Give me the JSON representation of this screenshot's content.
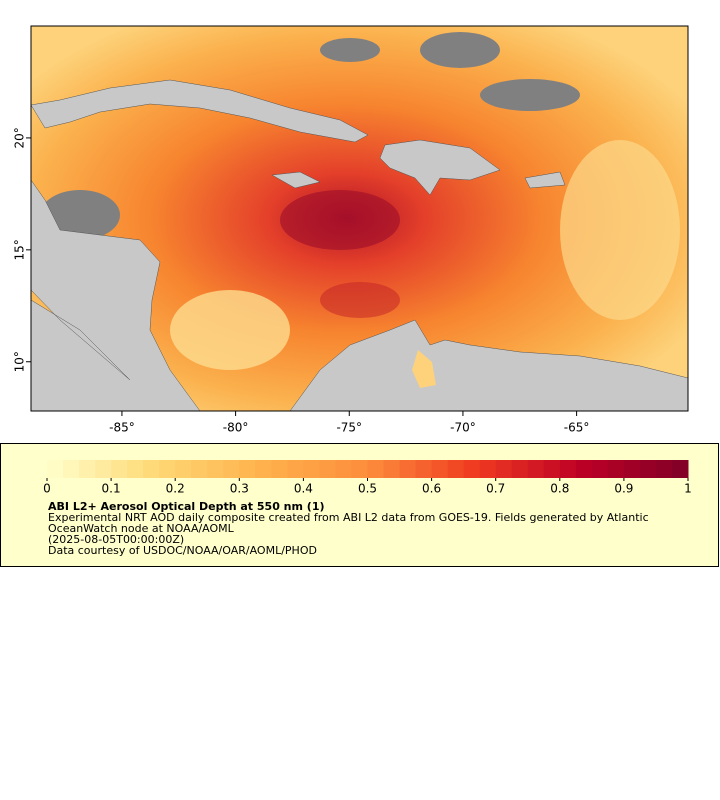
{
  "map": {
    "xlim": [
      -89,
      -60.1
    ],
    "ylim": [
      7.8,
      25
    ],
    "xticks": [
      {
        "value": -85,
        "label": "-85°"
      },
      {
        "value": -80,
        "label": "-80°"
      },
      {
        "value": -75,
        "label": "-75°"
      },
      {
        "value": -70,
        "label": "-70°"
      },
      {
        "value": -65,
        "label": "-65°"
      }
    ],
    "yticks": [
      {
        "value": 10,
        "label": "10°"
      },
      {
        "value": 15,
        "label": "15°"
      },
      {
        "value": 20,
        "label": "20°"
      }
    ]
  },
  "colorbar": {
    "range": [
      0,
      1
    ],
    "ticks": [
      0,
      0.1,
      0.2,
      0.3,
      0.4,
      0.5,
      0.6,
      0.7,
      0.8,
      0.9,
      1
    ],
    "colors": [
      "#ffffcc",
      "#fed976",
      "#feb24c",
      "#fd8d3c",
      "#f03b20",
      "#bd0026",
      "#800026"
    ]
  },
  "legend": {
    "title": "ABI L2+ Aerosol Optical Depth at 550 nm (1)",
    "lines": [
      "Experimental NRT AOD daily composite created from ABI L2 data from GOES-19. Fields generated by Atlantic",
      "OceanWatch node at NOAA/AOML",
      "(2025-08-05T00:00:00Z)",
      "Data courtesy of USDOC/NOAA/OAR/AOML/PHOD"
    ]
  }
}
